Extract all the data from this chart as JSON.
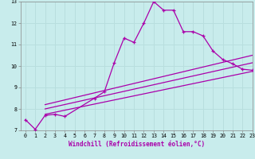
{
  "xlabel": "Windchill (Refroidissement éolien,°C)",
  "background_color": "#c8ecec",
  "grid_color": "#b8dede",
  "line_color": "#aa00aa",
  "x": [
    0,
    1,
    2,
    3,
    4,
    5,
    6,
    7,
    8,
    9,
    10,
    11,
    12,
    13,
    14,
    15,
    16,
    17,
    18,
    19,
    20,
    21,
    22,
    23
  ],
  "line1": [
    7.5,
    7.05,
    7.7,
    7.75,
    7.65,
    null,
    null,
    8.5,
    8.8,
    10.15,
    11.3,
    11.1,
    12.0,
    13.0,
    12.6,
    12.6,
    11.6,
    11.6,
    11.4,
    10.7,
    10.3,
    10.1,
    9.85,
    9.8
  ],
  "line2": [
    [
      2,
      8.2
    ],
    [
      23,
      10.5
    ]
  ],
  "line3": [
    [
      2,
      8.0
    ],
    [
      23,
      10.15
    ]
  ],
  "line4": [
    [
      2,
      7.75
    ],
    [
      23,
      9.75
    ]
  ],
  "ylim": [
    7,
    13
  ],
  "xlim": [
    -0.5,
    23
  ],
  "yticks": [
    7,
    8,
    9,
    10,
    11,
    12,
    13
  ],
  "xticks": [
    0,
    1,
    2,
    3,
    4,
    5,
    6,
    7,
    8,
    9,
    10,
    11,
    12,
    13,
    14,
    15,
    16,
    17,
    18,
    19,
    20,
    21,
    22,
    23
  ],
  "tick_fontsize": 4.8,
  "xlabel_fontsize": 5.5,
  "lw": 0.9,
  "ms": 3.0
}
